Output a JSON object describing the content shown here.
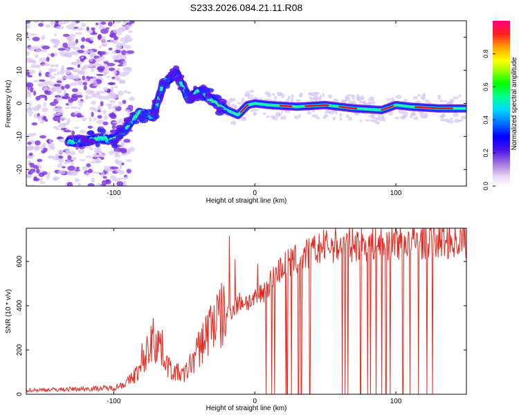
{
  "title": "S233.2026.084.21.11.R08",
  "colors": {
    "snr_line": "#e8281e",
    "axis": "#000000"
  },
  "chart_data": [
    {
      "type": "heatmap",
      "name": "spectrogram",
      "xlabel": "Height of straight line (km)",
      "ylabel": "Frequency (Hz)",
      "xlim": [
        -162,
        150
      ],
      "ylim": [
        -25,
        25
      ],
      "xticks": [
        -100,
        0,
        100
      ],
      "yticks": [
        -20,
        -10,
        0,
        10,
        20
      ],
      "colorbar": {
        "label": "Normalized spectral amplitude",
        "range": [
          0,
          1
        ],
        "ticks": [
          0.0,
          0.2,
          0.4,
          0.6,
          0.8
        ],
        "tick_labels": [
          "0.0",
          "0.2",
          "0.4",
          "0.6",
          "0.8"
        ]
      },
      "ridge": [
        [
          -130,
          -11.5
        ],
        [
          -120,
          -11.5
        ],
        [
          -110,
          -10.5
        ],
        [
          -100,
          -11.0
        ],
        [
          -90,
          -7.0
        ],
        [
          -82,
          -2.5
        ],
        [
          -72,
          -4.0
        ],
        [
          -65,
          6.0
        ],
        [
          -55,
          9.0
        ],
        [
          -47,
          1.0
        ],
        [
          -40,
          4.0
        ],
        [
          -30,
          1.0
        ],
        [
          -20,
          -2.0
        ],
        [
          -12,
          -3.5
        ],
        [
          -5,
          -0.5
        ],
        [
          0,
          0.0
        ],
        [
          10,
          -0.5
        ],
        [
          30,
          -1.0
        ],
        [
          50,
          -0.5
        ],
        [
          70,
          -1.5
        ],
        [
          90,
          -2.0
        ],
        [
          100,
          -0.5
        ],
        [
          110,
          -1.0
        ],
        [
          130,
          -1.5
        ],
        [
          148,
          -1.5
        ]
      ]
    },
    {
      "type": "line",
      "name": "snr",
      "xlabel": "Height of straight line (km)",
      "ylabel": "SNR (10 * v/v)",
      "xlim": [
        -162,
        150
      ],
      "ylim": [
        0,
        750
      ],
      "xticks": [
        -100,
        0,
        100
      ],
      "yticks": [
        0,
        200,
        400,
        600
      ],
      "envelope": [
        [
          -162,
          18
        ],
        [
          -100,
          28
        ],
        [
          -90,
          55
        ],
        [
          -80,
          120
        ],
        [
          -75,
          220
        ],
        [
          -68,
          240
        ],
        [
          -60,
          110
        ],
        [
          -50,
          85
        ],
        [
          -40,
          200
        ],
        [
          -30,
          330
        ],
        [
          -20,
          360
        ],
        [
          -10,
          420
        ],
        [
          0,
          420
        ],
        [
          10,
          500
        ],
        [
          20,
          580
        ],
        [
          30,
          610
        ],
        [
          40,
          640
        ],
        [
          50,
          670
        ],
        [
          60,
          675
        ],
        [
          80,
          680
        ],
        [
          100,
          685
        ],
        [
          120,
          690
        ],
        [
          150,
          695
        ]
      ],
      "spikes": [
        [
          -80,
          230
        ],
        [
          -72,
          345
        ],
        [
          -18,
          715
        ],
        [
          -14,
          610
        ],
        [
          2,
          590
        ],
        [
          100,
          760
        ]
      ],
      "dropouts": [
        8,
        12,
        14,
        22,
        23,
        26,
        31,
        33,
        39,
        62,
        64,
        66,
        75,
        80,
        82,
        86,
        90,
        93,
        96,
        100,
        105,
        110,
        116,
        122,
        126
      ]
    }
  ]
}
